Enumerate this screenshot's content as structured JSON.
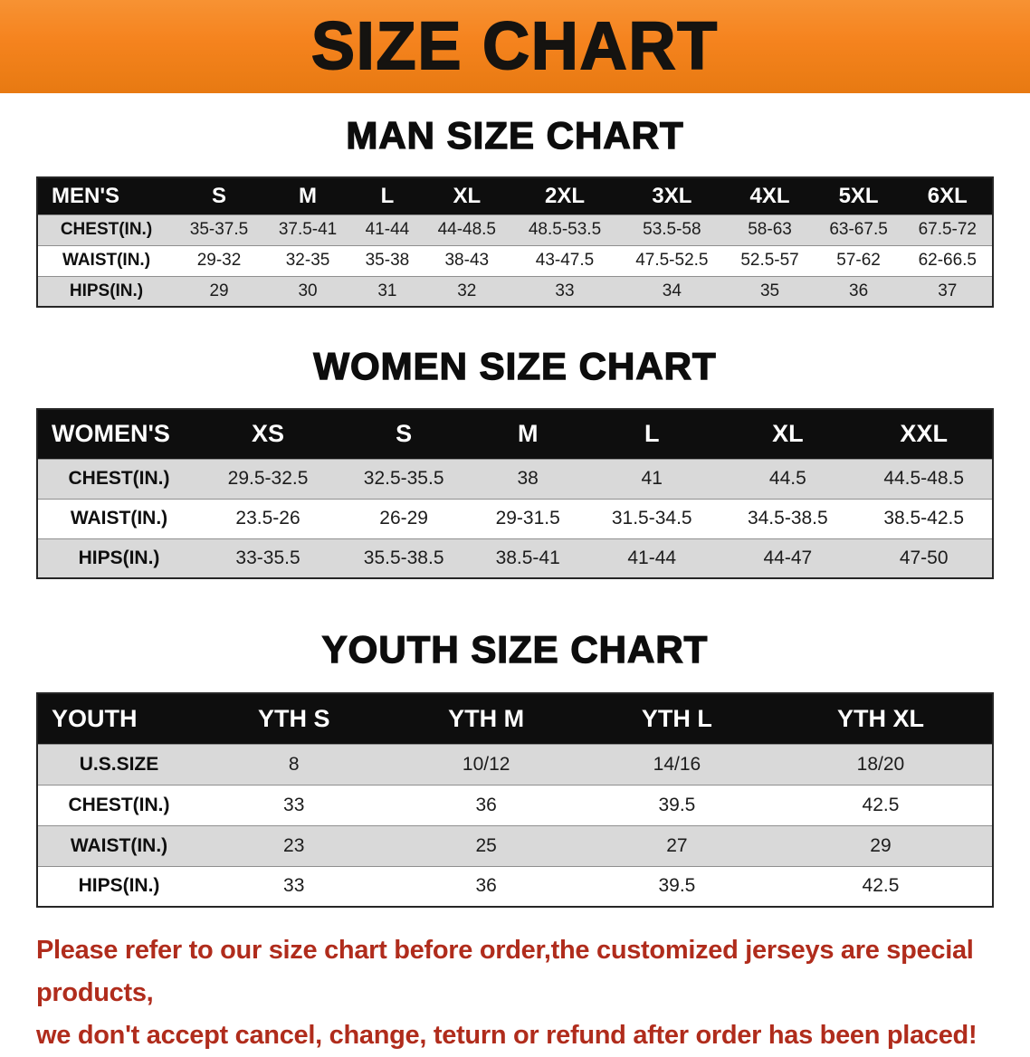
{
  "banner": {
    "title": "SIZE CHART"
  },
  "colors": {
    "banner_bg": "#f5831e",
    "banner_bg_light": "#f79233",
    "banner_bg_dark": "#e87a12",
    "banner_text": "#151310",
    "table_header_bg": "#0e0e0e",
    "table_header_text": "#ffffff",
    "row_alt_bg": "#d9d9d9",
    "row_bg": "#ffffff",
    "note_text": "#b02c1c"
  },
  "sections": [
    {
      "heading": "MAN SIZE CHART",
      "header": [
        "MEN'S",
        "S",
        "M",
        "L",
        "XL",
        "2XL",
        "3XL",
        "4XL",
        "5XL",
        "6XL"
      ],
      "rows": [
        [
          "CHEST(IN.)",
          "35-37.5",
          "37.5-41",
          "41-44",
          "44-48.5",
          "48.5-53.5",
          "53.5-58",
          "58-63",
          "63-67.5",
          "67.5-72"
        ],
        [
          "WAIST(IN.)",
          "29-32",
          "32-35",
          "35-38",
          "38-43",
          "43-47.5",
          "47.5-52.5",
          "52.5-57",
          "57-62",
          "62-66.5"
        ],
        [
          "HIPS(IN.)",
          "29",
          "30",
          "31",
          "32",
          "33",
          "34",
          "35",
          "36",
          "37"
        ]
      ]
    },
    {
      "heading": "WOMEN SIZE CHART",
      "header": [
        "WOMEN'S",
        "XS",
        "S",
        "M",
        "L",
        "XL",
        "XXL"
      ],
      "rows": [
        [
          "CHEST(IN.)",
          "29.5-32.5",
          "32.5-35.5",
          "38",
          "41",
          "44.5",
          "44.5-48.5"
        ],
        [
          "WAIST(IN.)",
          "23.5-26",
          "26-29",
          "29-31.5",
          "31.5-34.5",
          "34.5-38.5",
          "38.5-42.5"
        ],
        [
          "HIPS(IN.)",
          "33-35.5",
          "35.5-38.5",
          "38.5-41",
          "41-44",
          "44-47",
          "47-50"
        ]
      ]
    },
    {
      "heading": "YOUTH SIZE CHART",
      "header": [
        "YOUTH",
        "YTH S",
        "YTH M",
        "YTH L",
        "YTH XL"
      ],
      "rows": [
        [
          "U.S.SIZE",
          "8",
          "10/12",
          "14/16",
          "18/20"
        ],
        [
          "CHEST(IN.)",
          "33",
          "36",
          "39.5",
          "42.5"
        ],
        [
          "WAIST(IN.)",
          "23",
          "25",
          "27",
          "29"
        ],
        [
          "HIPS(IN.)",
          "33",
          "36",
          "39.5",
          "42.5"
        ]
      ]
    }
  ],
  "note": {
    "line1": "Please refer to our size chart before order,the customized jerseys are special products,",
    "line2": "we don't accept cancel, change, teturn or refund after order has been placed!"
  }
}
